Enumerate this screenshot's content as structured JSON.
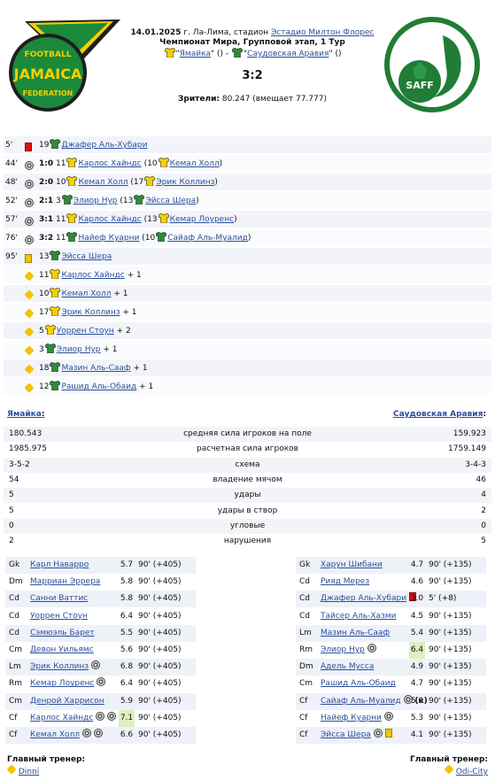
{
  "match": {
    "date": "14.01.2025",
    "place_prefix": " г. Ла-Лима, стадион ",
    "stadium": "Эстадио Милтон Флорес",
    "stage": "Чемпионат Мира, Групповой этап, 1 Тур",
    "home": "Ямайка",
    "away": "Саудовская Аравия",
    "home_extra": " () - ",
    "away_extra": " ()",
    "score": "3:2",
    "attendance_label": "Зрители:",
    "attendance": " 80.247 (вмещает 77.777)"
  },
  "logos": {
    "home_text_top": "FOOTBALL",
    "home_text_mid": "JAMAICA",
    "home_text_bottom": "FEDERATION",
    "away_text": "SAFF"
  },
  "events": [
    {
      "min": "5'",
      "icon": "red-card",
      "score": "",
      "num": "19",
      "player": "Джафер Аль-Хубари",
      "sub": "",
      "suffix": ""
    },
    {
      "min": "44'",
      "icon": "ball",
      "score": "1:0",
      "num": "11",
      "player": "Карлос Хайндс",
      "sub": "10",
      "sub_player": "Кемал Холл",
      "suffix": ")"
    },
    {
      "min": "48'",
      "icon": "ball",
      "score": "2:0",
      "num": "10",
      "player": "Кемал Холл",
      "sub": "17",
      "sub_player": "Эрик Коллинз",
      "suffix": ")"
    },
    {
      "min": "52'",
      "icon": "ball",
      "score": "2:1",
      "num": "3",
      "player": "Элиор Нур",
      "sub": "13",
      "sub_player": "Эйсса Шера",
      "suffix": ")"
    },
    {
      "min": "57'",
      "icon": "ball",
      "score": "3:1",
      "num": "11",
      "player": "Карлос Хайндс",
      "sub": "13",
      "sub_player": "Кемар Лоуренс",
      "suffix": ")"
    },
    {
      "min": "76'",
      "icon": "ball",
      "score": "3:2",
      "num": "11",
      "player": "Найеф Куарни",
      "sub": "10",
      "sub_player": "Сайаф Аль-Муалид",
      "suffix": ")"
    },
    {
      "min": "95'",
      "icon": "yellow-card",
      "score": "",
      "num": "13",
      "player": "Эйсса Шера",
      "sub": "",
      "suffix": ""
    },
    {
      "min": "",
      "icon": "plus",
      "score": "",
      "num": "11",
      "player": "Карлос Хайндс",
      "sub": "",
      "suffix": " + 1"
    },
    {
      "min": "",
      "icon": "plus",
      "score": "",
      "num": "10",
      "player": "Кемал Холл",
      "sub": "",
      "suffix": " + 1"
    },
    {
      "min": "",
      "icon": "plus",
      "score": "",
      "num": "17",
      "player": "Эрик Коллинз",
      "sub": "",
      "suffix": " + 1"
    },
    {
      "min": "",
      "icon": "plus",
      "score": "",
      "num": "5",
      "player": "Уоррен Стоун",
      "sub": "",
      "suffix": " + 2"
    },
    {
      "min": "",
      "icon": "plus",
      "score": "",
      "num": "3",
      "player": "Элиор Нур",
      "sub": "",
      "suffix": " + 1"
    },
    {
      "min": "",
      "icon": "plus",
      "score": "",
      "num": "18",
      "player": "Мазин Аль-Сааф",
      "sub": "",
      "suffix": " + 1"
    },
    {
      "min": "",
      "icon": "plus",
      "score": "",
      "num": "12",
      "player": "Рашид Аль-Обаид",
      "sub": "",
      "suffix": " + 1"
    }
  ],
  "stats_header": {
    "home": "Ямайка",
    "away": "Саудовская Аравия",
    "colon": ":"
  },
  "stats": [
    {
      "home": "180.543",
      "label": "средняя сила игроков на поле",
      "away": "159.923"
    },
    {
      "home": "1985.975",
      "label": "расчетная сила игроков",
      "away": "1759.149"
    },
    {
      "home": "3-5-2",
      "label": "схема",
      "away": "3-4-3"
    },
    {
      "home": "54",
      "label": "владение мячом",
      "away": "46"
    },
    {
      "home": "5",
      "label": "удары",
      "away": "4"
    },
    {
      "home": "5",
      "label": "удары в створ",
      "away": "2"
    },
    {
      "home": "0",
      "label": "угловые",
      "away": "0"
    },
    {
      "home": "2",
      "label": "нарушения",
      "away": "5"
    }
  ],
  "home_players": [
    {
      "pos": "Gk",
      "name": "Карл Наварро",
      "rating": "5.7",
      "minutes": "90' (+405)",
      "marks": []
    },
    {
      "pos": "Dm",
      "name": "Марриан Эррера",
      "rating": "5.8",
      "minutes": "90' (+405)",
      "marks": []
    },
    {
      "pos": "Cd",
      "name": "Санни Ваттис",
      "rating": "5.8",
      "minutes": "90' (+405)",
      "marks": []
    },
    {
      "pos": "Cd",
      "name": "Уоррен Стоун",
      "rating": "6.4",
      "minutes": "90' (+405)",
      "marks": []
    },
    {
      "pos": "Cd",
      "name": "Сэмюэль Барет",
      "rating": "5.5",
      "minutes": "90' (+405)",
      "marks": []
    },
    {
      "pos": "Cm",
      "name": "Девон Уильямс",
      "rating": "5.6",
      "minutes": "90' (+405)",
      "marks": []
    },
    {
      "pos": "Lm",
      "name": "Эрик Коллинз",
      "rating": "6.8",
      "minutes": "90' (+405)",
      "marks": [
        "ball"
      ]
    },
    {
      "pos": "Rm",
      "name": "Кемар Лоуренс",
      "rating": "6.4",
      "minutes": "90' (+405)",
      "marks": [
        "ball"
      ]
    },
    {
      "pos": "Cm",
      "name": "Денрой Харрисон",
      "rating": "5.9",
      "minutes": "90' (+405)",
      "marks": []
    },
    {
      "pos": "Cf",
      "name": "Карлос Хайндс",
      "rating": "7.1",
      "minutes": "90' (+405)",
      "marks": [
        "ball",
        "ball"
      ],
      "highlight": true
    },
    {
      "pos": "Cf",
      "name": "Кемал Холл",
      "rating": "6.6",
      "minutes": "90' (+405)",
      "marks": [
        "ball",
        "ball"
      ]
    }
  ],
  "away_players": [
    {
      "pos": "Gk",
      "name": "Харун Шибани",
      "rating": "4.7",
      "minutes": "90' (+135)",
      "marks": []
    },
    {
      "pos": "Cd",
      "name": "Рияд Мерез",
      "rating": "4.6",
      "minutes": "90' (+135)",
      "marks": []
    },
    {
      "pos": "Cd",
      "name": "Джафер Аль-Хубари",
      "rating": "3.0",
      "minutes": "5' (+8)",
      "marks": [
        "red-card"
      ]
    },
    {
      "pos": "Cd",
      "name": "Тайсер Аль-Хазми",
      "rating": "4.5",
      "minutes": "90' (+135)",
      "marks": []
    },
    {
      "pos": "Lm",
      "name": "Мазин Аль-Сааф",
      "rating": "5.4",
      "minutes": "90' (+135)",
      "marks": []
    },
    {
      "pos": "Rm",
      "name": "Элиор Нур",
      "rating": "6.4",
      "minutes": "90' (+135)",
      "marks": [
        "ball"
      ],
      "highlight": true
    },
    {
      "pos": "Dm",
      "name": "Адель Мусса",
      "rating": "4.9",
      "minutes": "90' (+135)",
      "marks": []
    },
    {
      "pos": "Cm",
      "name": "Рашид Аль-Обаид",
      "rating": "4.7",
      "minutes": "90' (+135)",
      "marks": []
    },
    {
      "pos": "Cf",
      "name": "Сайаф Аль-Муалид",
      "rating": "5.0",
      "minutes": "90' (+135)",
      "marks": [
        "ball"
      ],
      "captain": "(к)"
    },
    {
      "pos": "Cf",
      "name": "Найеф Куарни",
      "rating": "5.3",
      "minutes": "90' (+135)",
      "marks": [
        "ball"
      ]
    },
    {
      "pos": "Cf",
      "name": "Эйсса Шера",
      "rating": "4.1",
      "minutes": "90' (+135)",
      "marks": [
        "ball",
        "yellow-card"
      ]
    }
  ],
  "coaches": {
    "label": "Главный тренер:",
    "home": "Dinni",
    "away": "Odi-City"
  },
  "colors": {
    "link": "#2a4f9a",
    "band": "#f2f4fa",
    "rating_highlight": "#dfefc0",
    "home_shirt": "#f3d000",
    "away_shirt": "#2e8b3d"
  }
}
